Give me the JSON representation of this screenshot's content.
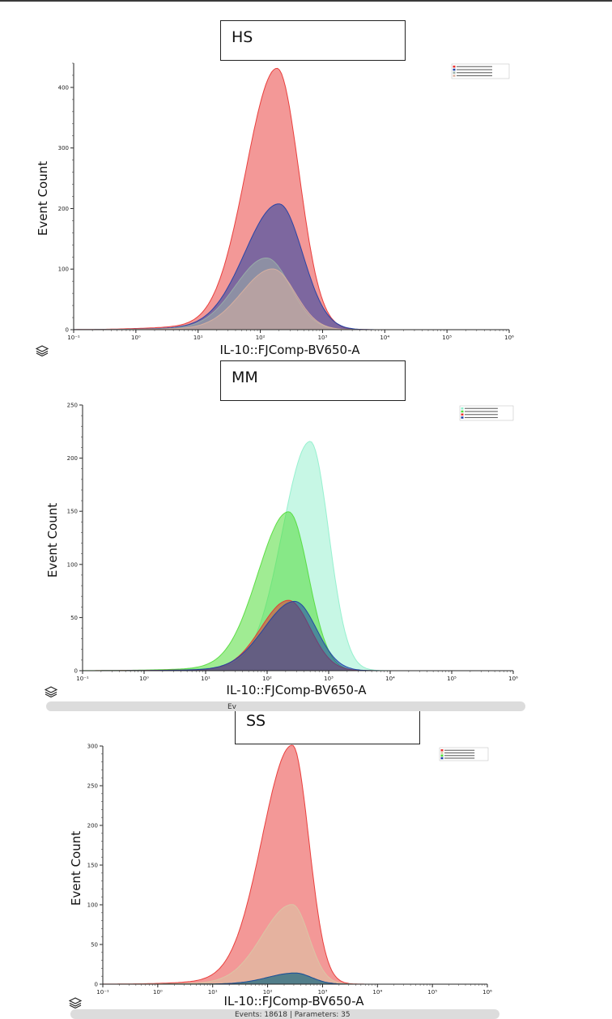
{
  "footer": {
    "events_text": "Events: 18618 | Parameters: 35",
    "mm_footer_fragment": "Ev"
  },
  "colors": {
    "blue": "#1c3fa6",
    "red": "#e8312f",
    "green": "#52dc3a",
    "mint": "#8ff0cc",
    "tan": "#d9c8a6",
    "grey": "#a9a9a9"
  },
  "chart_data": [
    {
      "type": "area",
      "panel_title": "HS",
      "xlabel": "IL-10::FJComp-BV650-A",
      "ylabel": "Event Count",
      "xscale": "log",
      "xlim": [
        0.1,
        1000000
      ],
      "ylim": [
        0,
        440
      ],
      "yticks": [
        0,
        100,
        200,
        300,
        400
      ],
      "xticks": [
        "10⁻¹",
        "10⁰",
        "10¹",
        "10²",
        "10³",
        "10⁴",
        "10⁵",
        "10⁶"
      ],
      "legend_position": "top-right",
      "series": [
        {
          "color": "#e8312f",
          "center_log10": 2.27,
          "sigma_left": 0.5,
          "sigma_right": 0.35,
          "peak": 430
        },
        {
          "color": "#1c3fa6",
          "center_log10": 2.3,
          "sigma_left": 0.55,
          "sigma_right": 0.38,
          "peak": 207
        },
        {
          "color": "#9ab0a8",
          "center_log10": 2.1,
          "sigma_left": 0.5,
          "sigma_right": 0.38,
          "peak": 118
        },
        {
          "color": "#d9b0a0",
          "center_log10": 2.2,
          "sigma_left": 0.5,
          "sigma_right": 0.36,
          "peak": 100
        }
      ]
    },
    {
      "type": "area",
      "panel_title": "MM",
      "xlabel": "IL-10::FJComp-BV650-A",
      "ylabel": "Event Count",
      "xscale": "log",
      "xlim": [
        0.1,
        1000000
      ],
      "ylim": [
        0,
        250
      ],
      "yticks": [
        0,
        50,
        100,
        150,
        200,
        250
      ],
      "xticks": [
        "10⁻¹",
        "10⁰",
        "10¹",
        "10²",
        "10³",
        "10⁴",
        "10⁵",
        "10⁶"
      ],
      "legend_position": "top-right",
      "series": [
        {
          "color": "#8ff0cc",
          "center_log10": 2.7,
          "sigma_left": 0.45,
          "sigma_right": 0.3,
          "peak": 215
        },
        {
          "color": "#52dc3a",
          "center_log10": 2.35,
          "sigma_left": 0.5,
          "sigma_right": 0.32,
          "peak": 149
        },
        {
          "color": "#e8312f",
          "center_log10": 2.35,
          "sigma_left": 0.45,
          "sigma_right": 0.35,
          "peak": 66
        },
        {
          "color": "#1c3fa6",
          "center_log10": 2.45,
          "sigma_left": 0.5,
          "sigma_right": 0.35,
          "peak": 65
        }
      ]
    },
    {
      "type": "area",
      "panel_title": "SS",
      "xlabel": "IL-10::FJComp-BV650-A",
      "ylabel": "Event Count",
      "xscale": "log",
      "xlim": [
        0.1,
        1000000
      ],
      "ylim": [
        0,
        300
      ],
      "yticks": [
        0,
        50,
        100,
        150,
        200,
        250,
        300
      ],
      "xticks": [
        "10⁻¹",
        "10⁰",
        "10¹",
        "10²",
        "10³",
        "10⁴",
        "10⁵",
        "10⁶"
      ],
      "legend_position": "top-right",
      "series": [
        {
          "color": "#e8312f",
          "center_log10": 2.45,
          "sigma_left": 0.55,
          "sigma_right": 0.3,
          "peak": 300
        },
        {
          "color": "#d9c8a6",
          "center_log10": 2.45,
          "sigma_left": 0.55,
          "sigma_right": 0.3,
          "peak": 100
        },
        {
          "color": "#52dc3a",
          "center_log10": 2.5,
          "sigma_left": 0.5,
          "sigma_right": 0.3,
          "peak": 14
        },
        {
          "color": "#1c3fa6",
          "center_log10": 2.5,
          "sigma_left": 0.5,
          "sigma_right": 0.3,
          "peak": 14
        }
      ]
    }
  ]
}
